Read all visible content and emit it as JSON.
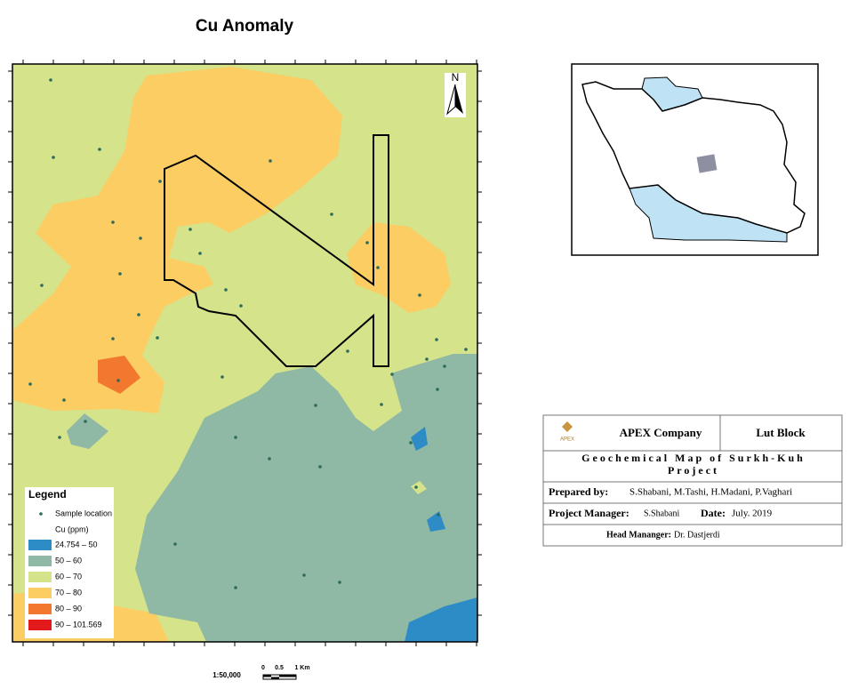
{
  "title": "Cu Anomaly",
  "north": "N",
  "legend": {
    "title": "Legend",
    "sample": "Sample location",
    "field": "Cu (ppm)",
    "items": [
      {
        "label": "24.754 – 50",
        "color": "#2d8bc6"
      },
      {
        "label": "50 – 60",
        "color": "#8fb9a5"
      },
      {
        "label": "60 – 70",
        "color": "#d5e38b"
      },
      {
        "label": "70 – 80",
        "color": "#fccd62"
      },
      {
        "label": "80 – 90",
        "color": "#f2782f"
      },
      {
        "label": "90 – 101.569",
        "color": "#e31a1c"
      }
    ]
  },
  "scale": {
    "ratio": "1:50,000",
    "labels": [
      "0",
      "0.5",
      "1 Km"
    ]
  },
  "title_block": {
    "logo": "APEX",
    "company": "APEX Company",
    "block": "Lut Block",
    "project": "Geochemical Map of Surkh-Kuh Project",
    "prepared_label": "Prepared by:",
    "prepared": "S.Shabani, M.Tashi, H.Madani, P.Vaghari",
    "manager_label": "Project Manager:",
    "manager": "S.Shabani",
    "date_label": "Date:",
    "date": "July. 2019",
    "head_label": "Head Mananger:",
    "head": "Dr. Dastjerdi"
  }
}
